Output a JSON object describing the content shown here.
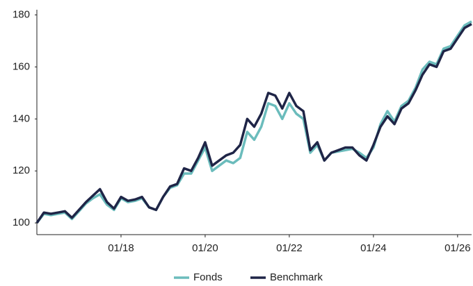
{
  "chart_data": {
    "type": "line",
    "x": [
      "01/16",
      "03/16",
      "05/16",
      "07/16",
      "09/16",
      "11/16",
      "01/17",
      "03/17",
      "05/17",
      "07/17",
      "09/17",
      "11/17",
      "01/18",
      "03/18",
      "05/18",
      "07/18",
      "09/18",
      "11/18",
      "01/19",
      "03/19",
      "05/19",
      "07/19",
      "09/19",
      "11/19",
      "01/20",
      "03/20",
      "05/20",
      "07/20",
      "09/20",
      "11/20",
      "01/21",
      "03/21",
      "05/21",
      "07/21",
      "09/21",
      "11/21",
      "01/22",
      "03/22",
      "05/22",
      "07/22",
      "09/22",
      "11/22",
      "01/23",
      "03/23",
      "05/23",
      "07/23",
      "09/23",
      "11/23",
      "01/24",
      "03/24",
      "05/24",
      "07/24",
      "09/24",
      "11/24",
      "01/25",
      "03/25",
      "05/25",
      "07/25",
      "09/25",
      "11/25",
      "01/26",
      "03/26",
      "05/26"
    ],
    "series": [
      {
        "name": "Fonds",
        "color": "#6bbcbc",
        "values": [
          100,
          103.5,
          103,
          103.5,
          104,
          101.5,
          104.5,
          107.5,
          109.5,
          111,
          107,
          105,
          109.5,
          108,
          108.5,
          109.5,
          106,
          105,
          110,
          113.5,
          114.5,
          119,
          119,
          124,
          129,
          120,
          122,
          124,
          123,
          125,
          135,
          132,
          137,
          146,
          145,
          140,
          146,
          142,
          140,
          127,
          130,
          124,
          127,
          127.5,
          128,
          128.5,
          127,
          125,
          129,
          138,
          143,
          139,
          145,
          147,
          152,
          159,
          162,
          161,
          167,
          168,
          172,
          176,
          177.5
        ]
      },
      {
        "name": "Benchmark",
        "color": "#1f2547",
        "values": [
          100,
          104,
          103.5,
          104,
          104.5,
          102,
          105,
          108,
          110.5,
          113,
          108,
          105.5,
          110,
          108.5,
          109,
          110,
          106,
          105,
          110,
          114,
          115,
          121,
          120,
          125,
          131,
          122,
          124,
          126,
          127,
          130,
          140,
          137,
          142,
          150,
          149,
          144,
          150,
          145,
          143,
          128,
          131,
          124,
          127,
          128,
          129,
          129,
          126,
          124,
          130,
          137,
          141,
          138,
          144,
          146,
          151,
          157,
          161,
          160,
          166,
          167,
          171,
          175,
          176.5
        ]
      }
    ],
    "xlim": [
      "01/16",
      "05/26"
    ],
    "xticks": [
      "01/18",
      "01/20",
      "01/22",
      "01/24",
      "01/26"
    ],
    "ylim": [
      95.5,
      182
    ],
    "yticks": [
      100,
      120,
      140,
      160,
      180
    ],
    "grid": false,
    "legend": "bottom"
  }
}
